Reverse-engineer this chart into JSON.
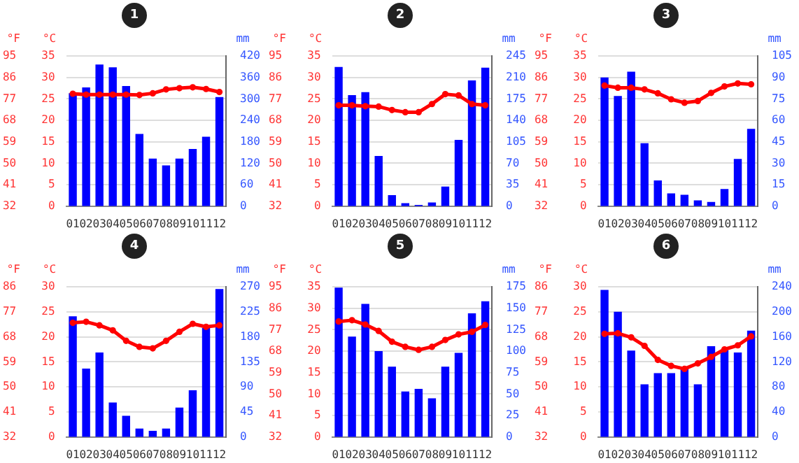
{
  "chart_data": [
    {
      "type": "bar",
      "title": "1",
      "ylabel": "°C",
      "y2label": "mm",
      "y3label": "°F",
      "categories": [
        "01",
        "02",
        "03",
        "04",
        "05",
        "06",
        "07",
        "08",
        "09",
        "10",
        "11",
        "12"
      ],
      "ylim": [
        0,
        35
      ],
      "yticks": [
        0,
        5,
        10,
        15,
        20,
        25,
        30,
        35
      ],
      "y2lim": [
        0,
        420
      ],
      "y2ticks": [
        0,
        60,
        120,
        180,
        240,
        300,
        360,
        420
      ],
      "y3lim": [
        32,
        95
      ],
      "y3ticks": [
        32,
        41,
        50,
        59,
        68,
        77,
        86,
        95
      ],
      "grid": "y",
      "legend": false,
      "marker": "circle",
      "series": [
        {
          "axis": "y2",
          "color": "#0000ff",
          "values": [
            316,
            332,
            396,
            388,
            336,
            202,
            133,
            114,
            133,
            160,
            194,
            305
          ]
        },
        {
          "type": "line",
          "color": "#ff0000",
          "values": [
            26.2,
            26.0,
            26.0,
            26.0,
            26.0,
            25.9,
            26.3,
            27.2,
            27.5,
            27.7,
            27.3,
            26.6
          ]
        }
      ]
    },
    {
      "type": "bar",
      "title": "2",
      "ylabel": "°C",
      "y2label": "mm",
      "y3label": "°F",
      "categories": [
        "01",
        "02",
        "03",
        "04",
        "05",
        "06",
        "07",
        "08",
        "09",
        "10",
        "11",
        "12"
      ],
      "ylim": [
        0,
        35
      ],
      "yticks": [
        0,
        5,
        10,
        15,
        20,
        25,
        30,
        35
      ],
      "y2lim": [
        0,
        245
      ],
      "y2ticks": [
        0,
        35,
        70,
        105,
        140,
        175,
        210,
        245
      ],
      "y3lim": [
        32,
        95
      ],
      "y3ticks": [
        32,
        41,
        50,
        59,
        68,
        77,
        86,
        95
      ],
      "grid": "y",
      "legend": false,
      "marker": "circle",
      "series": [
        {
          "axis": "y2",
          "color": "#0000ff",
          "values": [
            227,
            181,
            186,
            82,
            18,
            5,
            2,
            6,
            32,
            108,
            205,
            226
          ]
        },
        {
          "type": "line",
          "color": "#ff0000",
          "values": [
            23.5,
            23.5,
            23.3,
            23.2,
            22.4,
            21.9,
            21.9,
            23.8,
            26.1,
            25.8,
            23.8,
            23.5
          ]
        }
      ]
    },
    {
      "type": "bar",
      "title": "3",
      "ylabel": "°C",
      "y2label": "mm",
      "y3label": "°F",
      "categories": [
        "01",
        "02",
        "03",
        "04",
        "05",
        "06",
        "07",
        "08",
        "09",
        "10",
        "11",
        "12"
      ],
      "ylim": [
        0,
        35
      ],
      "yticks": [
        0,
        5,
        10,
        15,
        20,
        25,
        30,
        35
      ],
      "y2lim": [
        0,
        105
      ],
      "y2ticks": [
        0,
        15,
        30,
        45,
        60,
        75,
        90,
        105
      ],
      "y3lim": [
        32,
        95
      ],
      "y3ticks": [
        32,
        41,
        50,
        59,
        68,
        77,
        86,
        95
      ],
      "grid": "y",
      "legend": false,
      "marker": "circle",
      "series": [
        {
          "axis": "y2",
          "color": "#0000ff",
          "values": [
            90,
            77,
            94,
            44,
            18,
            9,
            8,
            4,
            3,
            12,
            33,
            54
          ]
        },
        {
          "type": "line",
          "color": "#ff0000",
          "values": [
            28.1,
            27.6,
            27.6,
            27.2,
            26.3,
            24.9,
            24.1,
            24.5,
            26.4,
            27.9,
            28.6,
            28.4
          ]
        }
      ]
    },
    {
      "type": "bar",
      "title": "4",
      "ylabel": "°C",
      "y2label": "mm",
      "y3label": "°F",
      "categories": [
        "01",
        "02",
        "03",
        "04",
        "05",
        "06",
        "07",
        "08",
        "09",
        "10",
        "11",
        "12"
      ],
      "ylim": [
        0,
        30
      ],
      "yticks": [
        0,
        5,
        10,
        15,
        20,
        25,
        30
      ],
      "y2lim": [
        0,
        270
      ],
      "y2ticks": [
        0,
        45,
        90,
        135,
        180,
        225,
        270
      ],
      "y3lim": [
        32,
        86
      ],
      "y3ticks": [
        32,
        41,
        50,
        59,
        68,
        77,
        86
      ],
      "grid": "y",
      "legend": false,
      "marker": "circle",
      "series": [
        {
          "axis": "y2",
          "color": "#0000ff",
          "values": [
            217,
            123,
            152,
            62,
            38,
            15,
            11,
            15,
            53,
            84,
            196,
            266
          ]
        },
        {
          "type": "line",
          "color": "#ff0000",
          "values": [
            22.8,
            23.0,
            22.3,
            21.3,
            19.2,
            18.0,
            17.7,
            19.2,
            21.0,
            22.6,
            22.0,
            22.3
          ]
        }
      ]
    },
    {
      "type": "bar",
      "title": "5",
      "ylabel": "°C",
      "y2label": "mm",
      "y3label": "°F",
      "categories": [
        "01",
        "02",
        "03",
        "04",
        "05",
        "06",
        "07",
        "08",
        "09",
        "10",
        "11",
        "12"
      ],
      "ylim": [
        0,
        35
      ],
      "yticks": [
        0,
        5,
        10,
        15,
        20,
        25,
        30,
        35
      ],
      "y2lim": [
        0,
        175
      ],
      "y2ticks": [
        0,
        25,
        50,
        75,
        100,
        125,
        150,
        175
      ],
      "y3lim": [
        32,
        95
      ],
      "y3ticks": [
        32,
        41,
        50,
        59,
        68,
        77,
        86,
        95
      ],
      "grid": "y",
      "legend": false,
      "marker": "circle",
      "series": [
        {
          "axis": "y2",
          "color": "#0000ff",
          "values": [
            174,
            117,
            155,
            100,
            82,
            53,
            56,
            45,
            82,
            98,
            144,
            158
          ]
        },
        {
          "type": "line",
          "color": "#ff0000",
          "values": [
            26.9,
            27.2,
            26.2,
            24.7,
            22.2,
            21.0,
            20.3,
            21.0,
            22.6,
            23.9,
            24.5,
            26.1
          ]
        }
      ]
    },
    {
      "type": "bar",
      "title": "6",
      "ylabel": "°C",
      "y2label": "mm",
      "y3label": "°F",
      "categories": [
        "01",
        "02",
        "03",
        "04",
        "05",
        "06",
        "07",
        "08",
        "09",
        "10",
        "11",
        "12"
      ],
      "ylim": [
        0,
        30
      ],
      "yticks": [
        0,
        5,
        10,
        15,
        20,
        25,
        30
      ],
      "y2lim": [
        0,
        240
      ],
      "y2ticks": [
        0,
        40,
        80,
        120,
        160,
        200,
        240
      ],
      "y3lim": [
        32,
        86
      ],
      "y3ticks": [
        32,
        41,
        50,
        59,
        68,
        77,
        86
      ],
      "grid": "y",
      "legend": false,
      "marker": "circle",
      "series": [
        {
          "axis": "y2",
          "color": "#0000ff",
          "values": [
            235,
            200,
            138,
            84,
            102,
            102,
            110,
            84,
            145,
            139,
            135,
            170
          ]
        },
        {
          "type": "line",
          "color": "#ff0000",
          "values": [
            20.6,
            20.7,
            19.9,
            18.2,
            15.4,
            14.2,
            13.6,
            14.7,
            16.0,
            17.5,
            18.3,
            20.1
          ]
        }
      ]
    }
  ]
}
